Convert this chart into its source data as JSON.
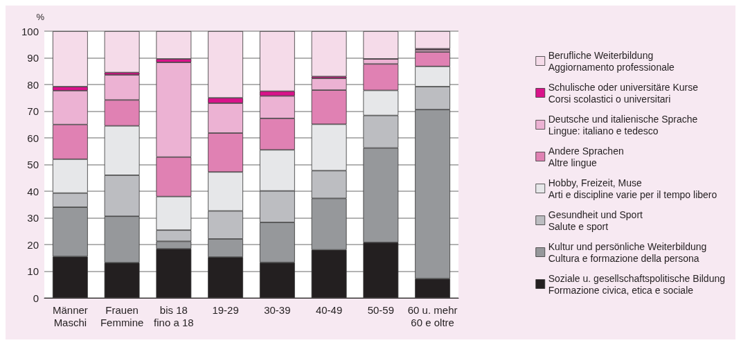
{
  "chart_data": {
    "type": "bar",
    "stacked": true,
    "ylabel": "%",
    "categories": [
      "Männer\nMaschi",
      "Frauen\nFemmine",
      "bis 18\nfino a 18",
      "19-29",
      "30-39",
      "40-49",
      "50-59",
      "60 u. mehr\n60 e oltre"
    ],
    "series": [
      {
        "name": "Soziale u. gesellschaftspolitische Bildung\nFormazione civica, etica e sociale",
        "color": "#231f20",
        "values": [
          15.5,
          13.2,
          18.4,
          15.3,
          13.3,
          18,
          20.8,
          7.2
        ]
      },
      {
        "name": "Kultur und persönliche Weiterbildung\nCultura e formazione della persona",
        "color": "#96989b",
        "values": [
          18.5,
          17.4,
          2.8,
          6.8,
          15,
          19.3,
          35.4,
          63.4
        ]
      },
      {
        "name": "Gesundheit und Sport\nSalute e sport",
        "color": "#bcbdc1",
        "values": [
          5.3,
          15.4,
          4.2,
          10.5,
          11.8,
          10.4,
          12.2,
          8.6
        ]
      },
      {
        "name": "Hobby, Freizeit, Muse\nArti e discipline varie per il tempo libero",
        "color": "#e6e7e9",
        "values": [
          12.7,
          18.5,
          12.6,
          14.6,
          15.4,
          17.4,
          9.4,
          7.6
        ]
      },
      {
        "name": "Andere Sprachen\nAltre lingue",
        "color": "#e081b3",
        "values": [
          13,
          9.7,
          14.8,
          14.6,
          11.8,
          12.8,
          9.9,
          5.4
        ]
      },
      {
        "name": "Deutsche und italienische Sprache\nLingue: italiano e tedesco",
        "color": "#ecb2d3",
        "values": [
          12.7,
          9.4,
          35.5,
          11.2,
          8.4,
          4.4,
          1.9,
          0.8
        ]
      },
      {
        "name": "Schulische oder universitäre Kurse\nCorsi scolastici o universitari",
        "color": "#d9138a",
        "values": [
          1.5,
          0.9,
          1.3,
          2,
          1.8,
          0.7,
          0,
          0.4
        ]
      },
      {
        "name": "Berufliche Weiterbildung\nAggiornamento professionale",
        "color": "#f5dbe9",
        "values": [
          20.8,
          15.5,
          10.4,
          25,
          22.5,
          17,
          10.4,
          6.6
        ]
      }
    ],
    "ylim": [
      0,
      100
    ],
    "yticks": [
      0,
      10,
      20,
      30,
      40,
      50,
      60,
      70,
      80,
      90,
      100
    ],
    "grid": "y",
    "legend": "right"
  }
}
